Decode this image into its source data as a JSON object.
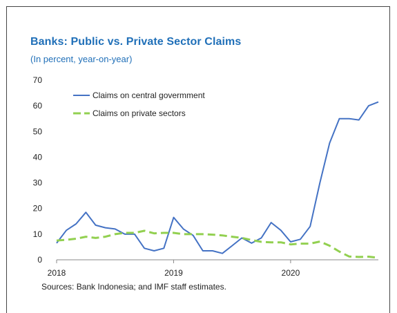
{
  "title": "Banks: Public vs. Private Sector Claims",
  "subtitle": "(In percent, year-on-year)",
  "source": "Sources: Bank Indonesia; and IMF staff estimates.",
  "chart_data": {
    "type": "line",
    "title": "Banks: Public vs. Private Sector Claims",
    "subtitle": "(In percent, year-on-year)",
    "xlabel": "",
    "ylabel": "",
    "ylim": [
      0,
      70
    ],
    "yticks": [
      0,
      10,
      20,
      30,
      40,
      50,
      60,
      70
    ],
    "xlim": [
      "2018-01",
      "2020-10"
    ],
    "xtick_labels": [
      "2018",
      "2019",
      "2020"
    ],
    "x": [
      "2018-01",
      "2018-02",
      "2018-03",
      "2018-04",
      "2018-05",
      "2018-06",
      "2018-07",
      "2018-08",
      "2018-09",
      "2018-10",
      "2018-11",
      "2018-12",
      "2019-01",
      "2019-02",
      "2019-03",
      "2019-04",
      "2019-05",
      "2019-06",
      "2019-07",
      "2019-08",
      "2019-09",
      "2019-10",
      "2019-11",
      "2019-12",
      "2020-01",
      "2020-02",
      "2020-03",
      "2020-04",
      "2020-05",
      "2020-06",
      "2020-07",
      "2020-08",
      "2020-09",
      "2020-10"
    ],
    "series": [
      {
        "name": "Claims on central govermment",
        "color": "#4472c4",
        "style": "solid",
        "values": [
          6.5,
          11.5,
          14,
          18.5,
          13.5,
          12.5,
          12,
          10,
          10,
          4.5,
          3.5,
          4.5,
          16.5,
          12,
          9.5,
          3.5,
          3.5,
          2.5,
          5.5,
          8.5,
          6.5,
          8.5,
          14.5,
          11.5,
          7,
          8,
          13,
          30,
          45.5,
          55,
          55,
          54.5,
          60,
          61.5
        ]
      },
      {
        "name": "Claims on private sectors",
        "color": "#92d050",
        "style": "dashed",
        "values": [
          7.5,
          7.8,
          8.2,
          9,
          8.5,
          9,
          10,
          10.5,
          10.5,
          11.3,
          10.3,
          10.5,
          10.5,
          10,
          10,
          10,
          9.8,
          9.5,
          9,
          8.5,
          7.7,
          7,
          6.8,
          6.8,
          6,
          6.3,
          6.3,
          7.1,
          5.5,
          3.2,
          1.3,
          1.1,
          1.2,
          0.8
        ]
      }
    ],
    "grid": false,
    "legend": "top-left"
  }
}
